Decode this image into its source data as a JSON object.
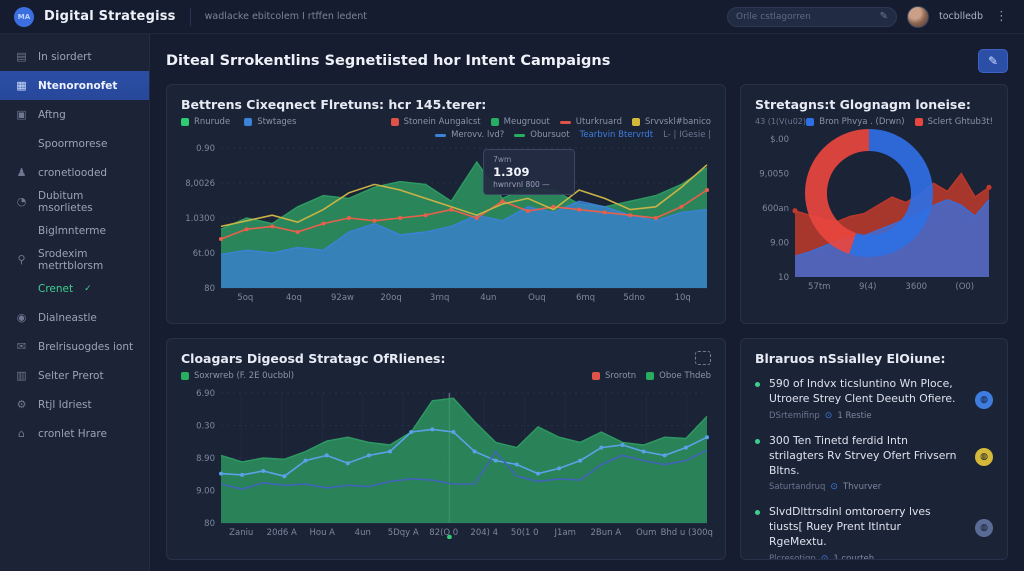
{
  "header": {
    "logo_text": "MA",
    "brand": "Digital Strategiss",
    "subtitle": "wadlacke ebitcolem I rtffen ledent",
    "search_placeholder": "Orlle cstlagorren",
    "username": "tocblledb"
  },
  "sidebar": {
    "items": [
      {
        "label": "In siordert",
        "icon": "monitor-icon",
        "type": "item"
      },
      {
        "label": "Ntenoronofet",
        "icon": "grid-icon",
        "type": "item",
        "active": true
      },
      {
        "label": "Aftng",
        "icon": "calendar-icon",
        "type": "item"
      },
      {
        "label": "Spoormorese",
        "icon": null,
        "type": "sub"
      },
      {
        "label": "cronetlooded",
        "icon": "user-icon",
        "type": "item"
      },
      {
        "label": "Dubitum msorlietes",
        "icon": "pie-icon",
        "type": "item"
      },
      {
        "label": "Biglmnterme",
        "icon": null,
        "type": "sub"
      },
      {
        "label": "Srodexim metrtblorsm",
        "icon": "search-icon",
        "type": "item"
      },
      {
        "label": "Crenet",
        "icon": null,
        "type": "sub",
        "accent": "green",
        "badge": "✓"
      },
      {
        "label": "Dialneastle",
        "icon": "bell-icon",
        "type": "item"
      },
      {
        "label": "Brelrisuogdes iont",
        "icon": "message-icon",
        "type": "item"
      },
      {
        "label": "Selter Prerot",
        "icon": "folder-icon",
        "type": "item"
      },
      {
        "label": "Rtjl Idriest",
        "icon": "gear-icon",
        "type": "item"
      },
      {
        "label": "cronlet Hrare",
        "icon": "home-icon",
        "type": "item"
      }
    ]
  },
  "page": {
    "title": "Diteal Srrokentlins Segnetiisted hor Intent Campaigns"
  },
  "panels": {
    "returns": {
      "title": "Bettrens Cixeqnect Flretuns: hcr 145.terer:",
      "legend_left": [
        {
          "label": "Rnurude",
          "color": "#2ecc71",
          "shape": "square"
        },
        {
          "label": "Stwtages",
          "color": "#3b82d8",
          "shape": "square"
        }
      ],
      "legend_right_row1": [
        {
          "label": "Stonein Aungalcst",
          "color": "#e05247",
          "shape": "square"
        },
        {
          "label": "Meugruout",
          "color": "#27ae60",
          "shape": "square"
        },
        {
          "label": "Uturkruard",
          "color": "#e05247",
          "shape": "dash"
        },
        {
          "label": "Srvvskl#banico",
          "color": "#d4b83a",
          "shape": "square"
        }
      ],
      "legend_right_row2": [
        {
          "label": "Merovv. lvd?",
          "color": "#3b82d8",
          "shape": "dash"
        },
        {
          "label": "Obursuot",
          "color": "#27ae60",
          "shape": "dash"
        },
        {
          "label": "Tearbvin Btervrdt",
          "color": "#3f7ce0",
          "shape": "text"
        },
        {
          "label": "L- | IGesie |",
          "color": "#6c7690",
          "shape": "text"
        }
      ],
      "tooltip": {
        "label": "7wm",
        "value": "1.309",
        "sub": "hwnrvnl 800 —"
      }
    },
    "geo": {
      "title": "Stretagns:t Glognagm loneise:",
      "legend_prefix": "43 (1(V(u02)",
      "legend": [
        {
          "label": "Bron Phvya . (Drwn)",
          "color": "#2f6fe4",
          "shape": "square"
        },
        {
          "label": "Sclert Ghtub3t!",
          "color": "#e8473f",
          "shape": "square"
        }
      ]
    },
    "digest": {
      "title": "Cloagars Digeosd Stratagc OfRlienes:",
      "legend_left": [
        {
          "label": "Soxrwreb (F. 2E 0ucbbl)",
          "color": "#27ae60",
          "shape": "square"
        }
      ],
      "legend_right": [
        {
          "label": "Srorotn",
          "color": "#e05247",
          "shape": "square"
        },
        {
          "label": "Oboe Thdeb",
          "color": "#27ae60",
          "shape": "square"
        }
      ]
    },
    "insights": {
      "title": "Blraruos nSsialley ElOiune:",
      "bullets": [
        {
          "text": "590 of Indvx ticsluntino Wn Ploce, Utroere Strey Clent Deeuth Ofiere.",
          "meta": "DSrtemifinp",
          "meta2": "1 Restie",
          "badge_color": "#3f7ce0"
        },
        {
          "text": "300 Ten Tinetd ferdid Intn strilagters Rv Strvey Ofert Frivsern Bltns.",
          "meta": "Saturtandruq",
          "meta2": "Thvurver",
          "badge_color": "#d4b83a"
        },
        {
          "text": "SlvdDlttrsdinl omtoroerry lves tiusts[ Ruey Prent Itlntur RgeMextu.",
          "meta": "Plcresotiqp",
          "meta2": "1 courteh",
          "badge_color": "#5a6c96"
        }
      ]
    }
  },
  "chart_data": [
    {
      "id": "returns",
      "type": "area",
      "title": "Bettrens Cixeqnect Flretuns: hcr 145.terer:",
      "units": "relative-0-100 (axis labels illegible/stylized)",
      "y_ticks": [
        "0.90",
        "8,0026",
        "1.0300",
        "6t.00",
        "80"
      ],
      "x_ticks": [
        "5oq",
        "4oq",
        "92aw",
        "20oq",
        "3rnq",
        "4un",
        "Ouq",
        "6mq",
        "5dno",
        "10q"
      ],
      "ylim": [
        0,
        100
      ],
      "grid": true,
      "series": [
        {
          "name": "Rnurude",
          "kind": "area",
          "color": "#2e9e63",
          "opacity": 0.8,
          "values": [
            42,
            50,
            46,
            58,
            66,
            64,
            72,
            76,
            74,
            62,
            90,
            64,
            72,
            70,
            60,
            58,
            62,
            66,
            74,
            86
          ]
        },
        {
          "name": "Stwtages",
          "kind": "area",
          "color": "#3b82d8",
          "opacity": 0.75,
          "values": [
            24,
            27,
            25,
            29,
            27,
            40,
            46,
            38,
            40,
            44,
            52,
            48,
            58,
            54,
            62,
            58,
            52,
            48,
            54,
            56
          ]
        },
        {
          "name": "Stonein Aungalcst",
          "kind": "line",
          "markers": true,
          "color": "#e8604c",
          "values": [
            35,
            42,
            44,
            40,
            46,
            50,
            48,
            50,
            52,
            56,
            50,
            62,
            55,
            58,
            56,
            54,
            52,
            50,
            58,
            70
          ]
        },
        {
          "name": "Srvvskl#banico",
          "kind": "line",
          "color": "#c9b345",
          "values": [
            44,
            48,
            52,
            47,
            56,
            68,
            74,
            70,
            64,
            58,
            52,
            60,
            64,
            56,
            70,
            64,
            56,
            58,
            72,
            88
          ]
        }
      ]
    },
    {
      "id": "geo-areas",
      "type": "area",
      "title": "Stretagns:t Glognagm loneise:",
      "units": "relative-0-100 (axis labels illegible/stylized)",
      "y_ticks": [
        "$.00",
        "9,0050",
        "600an",
        "9.00",
        "10"
      ],
      "x_ticks": [
        "57tm",
        "9(4)",
        "3600",
        "(O0)"
      ],
      "ylim": [
        0,
        100
      ],
      "grid": false,
      "series": [
        {
          "name": "Sclert Ghtub3t!",
          "kind": "area",
          "color": "#c0392b",
          "opacity": 0.85,
          "endDots": true,
          "values": [
            48,
            45,
            42,
            40,
            44,
            46,
            52,
            58,
            54,
            60,
            68,
            62,
            75,
            58,
            65
          ]
        },
        {
          "name": "Bron Phvya (Drwn)",
          "kind": "area",
          "color": "#3b6fd8",
          "opacity": 0.8,
          "values": [
            15,
            18,
            22,
            26,
            28,
            30,
            34,
            38,
            42,
            46,
            52,
            56,
            52,
            44,
            56
          ]
        }
      ]
    },
    {
      "id": "geo-donut",
      "type": "pie",
      "title": "Stretagns:t Glognagm loneise: (donut)",
      "slices": [
        {
          "name": "Bron Phvya (Drwn)",
          "value": 55,
          "color": "#2f6fe4"
        },
        {
          "name": "Sclert Ghtub3t!",
          "value": 45,
          "color": "#e8473f"
        }
      ]
    },
    {
      "id": "digest",
      "type": "area",
      "title": "Cloagars Digeosd Stratagc OfRlienes:",
      "units": "relative-0-100 (axis labels illegible/stylized)",
      "y_ticks": [
        "6.90",
        "0.30",
        "8.90",
        "9.00",
        "80"
      ],
      "x_ticks": [
        "Zaniu",
        "20d6 A",
        "Hou A",
        "4un",
        "5Dqy A",
        "82(O 0",
        "204) 4",
        "50(1 0",
        "J1am",
        "2Bun A",
        "Oum",
        "Bhd u (300q"
      ],
      "ylim": [
        0,
        100
      ],
      "grid": true,
      "vgrid": true,
      "crosshair": 0.47,
      "crosshair_dot": true,
      "series": [
        {
          "name": "Soxrwreb",
          "kind": "area",
          "color": "#2e9e63",
          "opacity": 0.78,
          "values": [
            52,
            47,
            50,
            49,
            55,
            63,
            66,
            62,
            60,
            70,
            94,
            96,
            78,
            62,
            58,
            74,
            66,
            62,
            70,
            62,
            60,
            66,
            65,
            82
          ]
        },
        {
          "name": "Oboe Thdeb",
          "kind": "line",
          "markers": true,
          "color": "#5aa2e8",
          "values": [
            38,
            37,
            40,
            36,
            48,
            52,
            46,
            52,
            55,
            70,
            72,
            70,
            55,
            48,
            45,
            38,
            42,
            48,
            58,
            60,
            55,
            52,
            58,
            66
          ]
        },
        {
          "name": "Srorotn",
          "kind": "line",
          "color": "#3f63b8",
          "values": [
            30,
            26,
            31,
            29,
            30,
            27,
            29,
            28,
            32,
            34,
            33,
            30,
            30,
            55,
            36,
            32,
            34,
            33,
            45,
            52,
            48,
            45,
            48,
            56
          ]
        }
      ]
    }
  ]
}
